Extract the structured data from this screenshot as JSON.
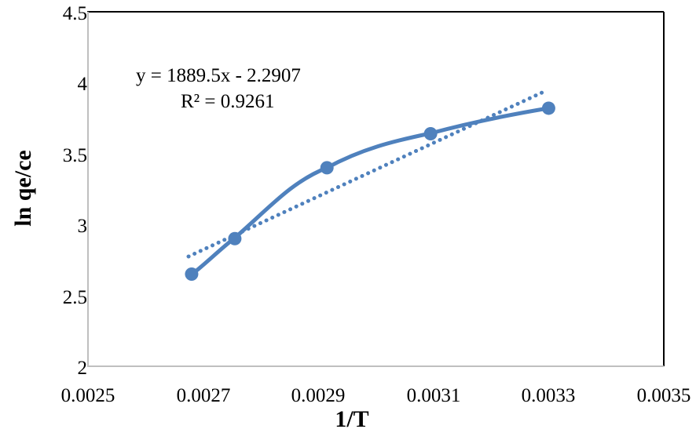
{
  "chart_data": {
    "type": "scatter",
    "title": "",
    "xlabel": "1/T",
    "ylabel": "ln qe/ce",
    "xlim": [
      0.0025,
      0.0035
    ],
    "ylim": [
      2,
      4.5
    ],
    "x_ticks": [
      "0.0025",
      "0.0027",
      "0.0029",
      "0.0031",
      "0.0033",
      "0.0035"
    ],
    "y_ticks": [
      "2",
      "2.5",
      "3",
      "3.5",
      "4",
      "4.5"
    ],
    "grid": false,
    "legend": null,
    "series": [
      {
        "name": "ln qe/ce",
        "style": "smoothed line with markers",
        "color": "#4f81bd",
        "x": [
          0.00268,
          0.002755,
          0.002915,
          0.003095,
          0.0033
        ],
        "y": [
          2.65,
          2.9,
          3.4,
          3.64,
          3.82
        ]
      },
      {
        "name": "Linear trendline",
        "style": "dotted",
        "color": "#4f81bd",
        "equation": "y = 1889.5x - 2.2907",
        "r_squared": "R² = 0.9261"
      }
    ],
    "annotations": [
      "y = 1889.5x - 2.2907",
      "R² = 0.9261"
    ]
  },
  "labels": {
    "xlabel": "1/T",
    "ylabel": "ln qe/ce",
    "equation": "y = 1889.5x - 2.2907",
    "r2": "R² = 0.9261"
  },
  "ticks": {
    "x": [
      "0.0025",
      "0.0027",
      "0.0029",
      "0.0031",
      "0.0033",
      "0.0035"
    ],
    "y": [
      "4.5",
      "4",
      "3.5",
      "3",
      "2.5",
      "2"
    ]
  },
  "colors": {
    "series": "#4f81bd",
    "axis": "#bfbfbf",
    "frame": "#000000"
  }
}
